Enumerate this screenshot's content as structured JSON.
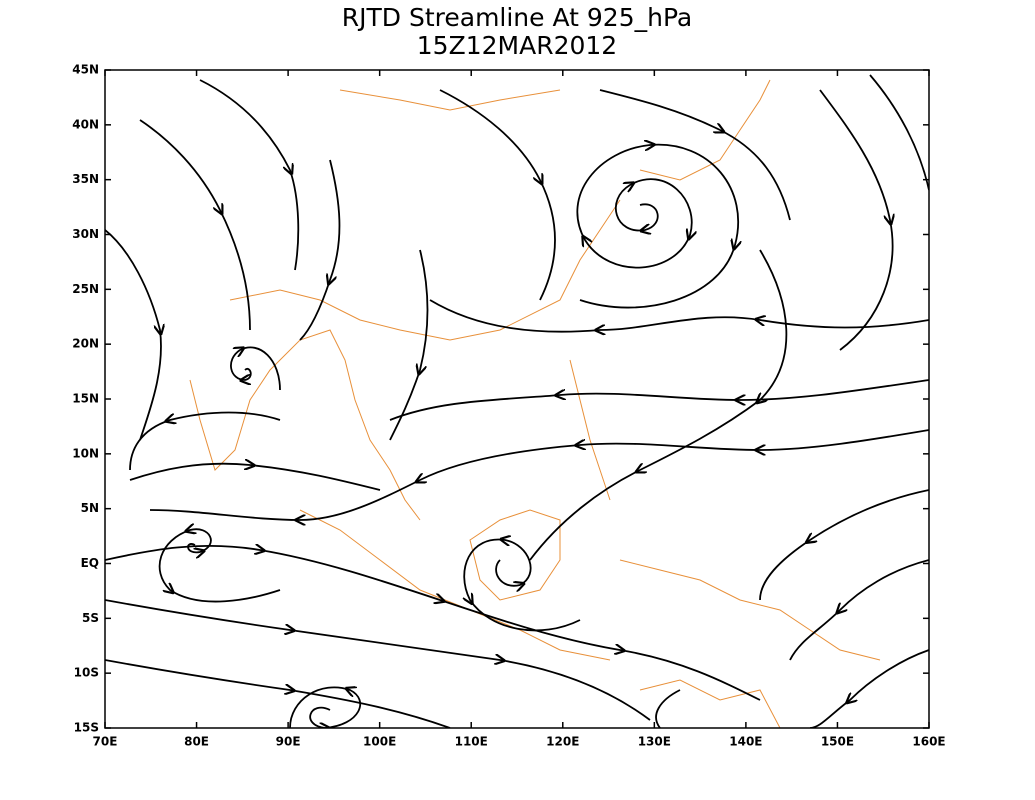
{
  "map": {
    "title": "RJTD Streamline At 925_hPa",
    "subtitle": "15Z12MAR2012",
    "xlim": [
      70,
      160
    ],
    "ylim": [
      -15,
      45
    ],
    "xticks": [
      {
        "value": 70,
        "label": "70E"
      },
      {
        "value": 80,
        "label": "80E"
      },
      {
        "value": 90,
        "label": "90E"
      },
      {
        "value": 100,
        "label": "100E"
      },
      {
        "value": 110,
        "label": "110E"
      },
      {
        "value": 120,
        "label": "120E"
      },
      {
        "value": 130,
        "label": "130E"
      },
      {
        "value": 140,
        "label": "140E"
      },
      {
        "value": 150,
        "label": "150E"
      },
      {
        "value": 160,
        "label": "160E"
      }
    ],
    "yticks": [
      {
        "value": -15,
        "label": "15S"
      },
      {
        "value": -10,
        "label": "10S"
      },
      {
        "value": -5,
        "label": "5S"
      },
      {
        "value": 0,
        "label": "EQ"
      },
      {
        "value": 5,
        "label": "5N"
      },
      {
        "value": 10,
        "label": "10N"
      },
      {
        "value": 15,
        "label": "15N"
      },
      {
        "value": 20,
        "label": "20N"
      },
      {
        "value": 25,
        "label": "25N"
      },
      {
        "value": 30,
        "label": "30N"
      },
      {
        "value": 35,
        "label": "35N"
      },
      {
        "value": 40,
        "label": "40N"
      },
      {
        "value": 45,
        "label": "45N"
      }
    ]
  }
}
